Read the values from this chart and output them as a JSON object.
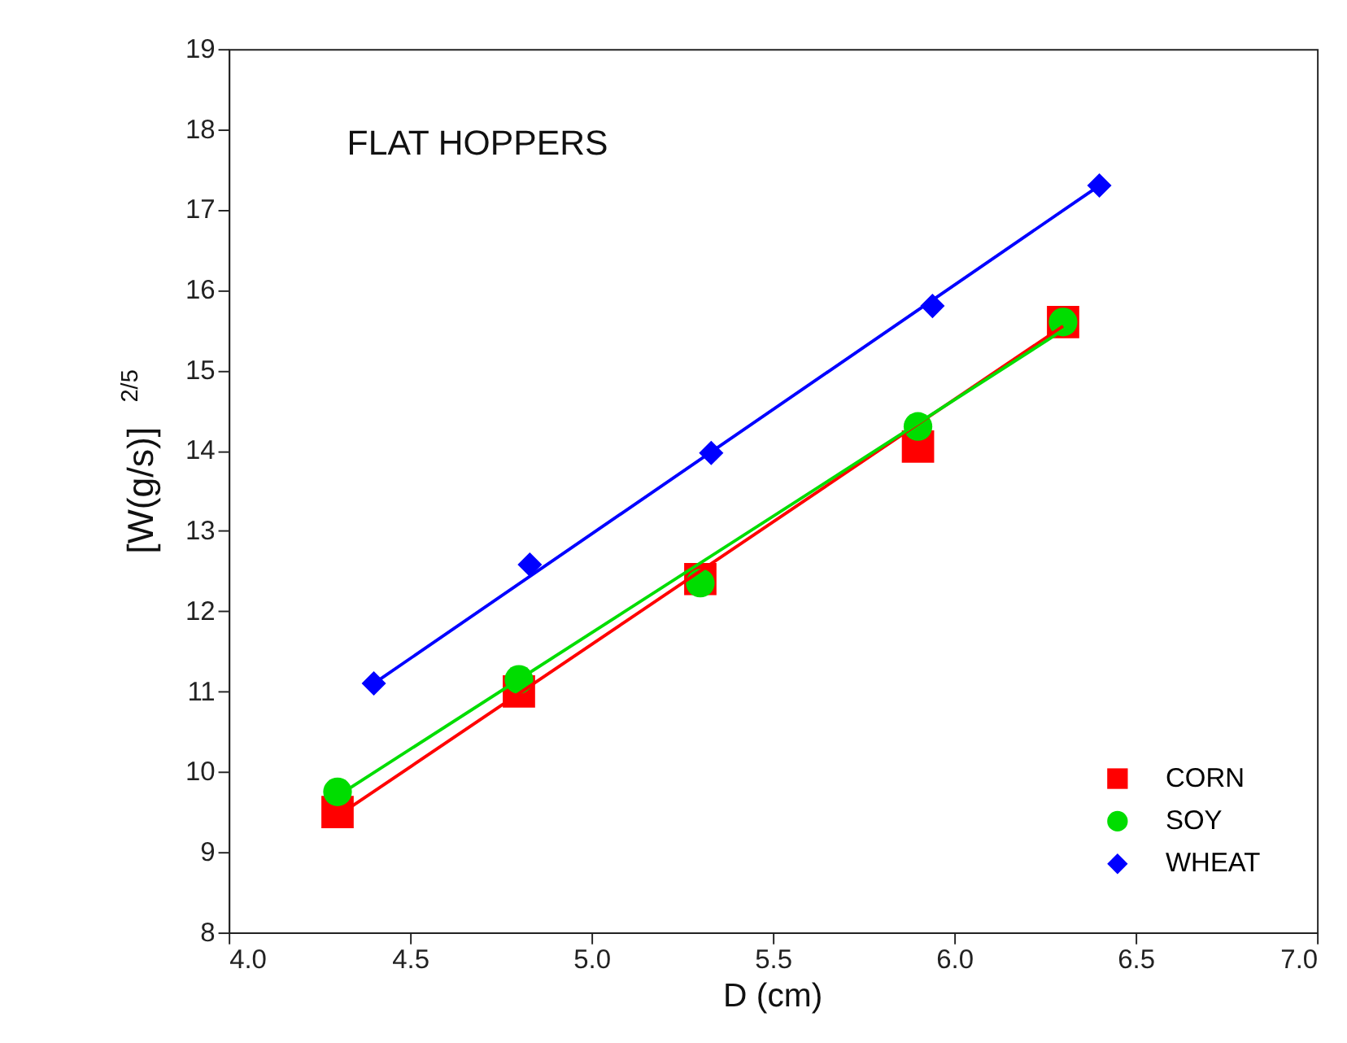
{
  "chart_data": {
    "type": "scatter",
    "title": "FLAT HOPPERS",
    "xlabel": "D (cm)",
    "ylabel": "[W(g/s)]$^{2/5}$",
    "xlim": [
      4.0,
      7.0
    ],
    "xticks": [
      {
        "value": 4.0,
        "label": "4.0"
      },
      {
        "value": 4.5,
        "label": "4.5"
      },
      {
        "value": 5.0,
        "label": "5.0"
      },
      {
        "value": 5.5,
        "label": "5.5"
      },
      {
        "value": 6.0,
        "label": "6.0"
      },
      {
        "value": 6.5,
        "label": "6.5"
      },
      {
        "value": 7.0,
        "label": "7.0"
      }
    ],
    "ylim": [
      8,
      19
    ],
    "yticks": [
      8,
      9,
      10,
      11,
      12,
      13,
      14,
      15,
      16,
      17,
      18,
      19
    ],
    "grid": false,
    "legend": "bottom right",
    "line_style": "solid",
    "series": [
      {
        "type": "line",
        "color": "#ff0000",
        "x": [
          4.3,
          6.3
        ],
        "values": [
          9.45,
          15.55
        ]
      },
      {
        "type": "line",
        "color": "#00dd00",
        "x": [
          4.3,
          6.3
        ],
        "values": [
          9.7,
          15.5
        ]
      },
      {
        "type": "line",
        "color": "#0000ff",
        "x": [
          4.4,
          6.4
        ],
        "values": [
          11.1,
          17.3
        ]
      },
      {
        "type": "scatter",
        "name": "CORN",
        "color": "#ff0000",
        "marker": "square",
        "x": [
          4.3,
          4.8,
          5.3,
          5.9,
          6.3
        ],
        "values": [
          9.5,
          11.0,
          12.4,
          14.05,
          15.6
        ]
      },
      {
        "type": "scatter",
        "name": "SOY",
        "color": "#00dd00",
        "marker": "circle",
        "x": [
          4.3,
          4.8,
          5.3,
          5.9,
          6.3
        ],
        "values": [
          9.75,
          11.15,
          12.35,
          14.3,
          15.6
        ]
      },
      {
        "type": "scatter",
        "name": "WHEAT",
        "color": "#0000ff",
        "marker": "diamond",
        "x": [
          4.4,
          4.83,
          5.33,
          5.94,
          6.4
        ],
        "values": [
          11.1,
          12.58,
          13.97,
          15.8,
          17.3
        ]
      }
    ]
  }
}
